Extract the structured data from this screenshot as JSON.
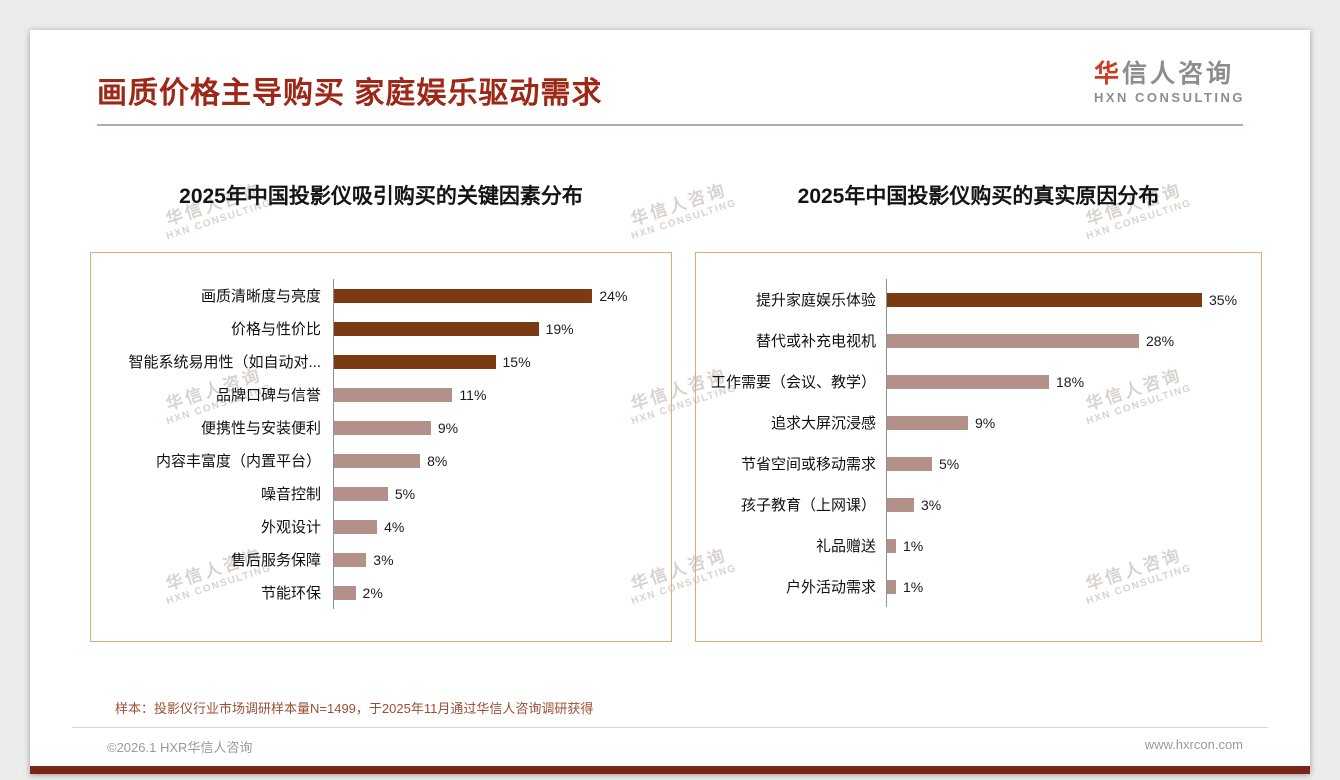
{
  "header": {
    "title": "画质价格主导购买 家庭娱乐驱动需求",
    "logo": {
      "mark": "华",
      "rest": "信人咨询",
      "en": "HXN CONSULTING"
    }
  },
  "watermark": {
    "line1": "华信人咨询",
    "line2": "HXN CONSULTING"
  },
  "colors": {
    "title": "#9e2817",
    "bar_dark": "#7a3a12",
    "bar_light": "#b3918a",
    "panel_border": "#ddab7c",
    "accent_strip": "#7c241a",
    "note": "#9c4f33"
  },
  "chart_data": [
    {
      "type": "bar",
      "orientation": "horizontal",
      "title": "2025年中国投影仪吸引购买的关键因素分布",
      "categories": [
        "画质清晰度与亮度",
        "价格与性价比",
        "智能系统易用性（如自动对...",
        "品牌口碑与信誉",
        "便携性与安装便利",
        "内容丰富度（内置平台）",
        "噪音控制",
        "外观设计",
        "售后服务保障",
        "节能环保"
      ],
      "values": [
        24,
        19,
        15,
        11,
        9,
        8,
        5,
        4,
        3,
        2
      ],
      "unit": "%",
      "highlight_count": 3,
      "xlim": [
        0,
        30
      ],
      "legend": "none",
      "grid": "off"
    },
    {
      "type": "bar",
      "orientation": "horizontal",
      "title": "2025年中国投影仪购买的真实原因分布",
      "categories": [
        "提升家庭娱乐体验",
        "替代或补充电视机",
        "工作需要（会议、教学）",
        "追求大屏沉浸感",
        "节省空间或移动需求",
        "孩子教育（上网课）",
        "礼品赠送",
        "户外活动需求"
      ],
      "values": [
        35,
        28,
        18,
        9,
        5,
        3,
        1,
        1
      ],
      "unit": "%",
      "highlight_count": 1,
      "xlim": [
        0,
        40
      ],
      "legend": "none",
      "grid": "off"
    }
  ],
  "note": "样本：投影仪行业市场调研样本量N=1499，于2025年11月通过华信人咨询调研获得",
  "footer": {
    "left": "©2026.1 HXR华信人咨询",
    "right": "www.hxrcon.com"
  }
}
